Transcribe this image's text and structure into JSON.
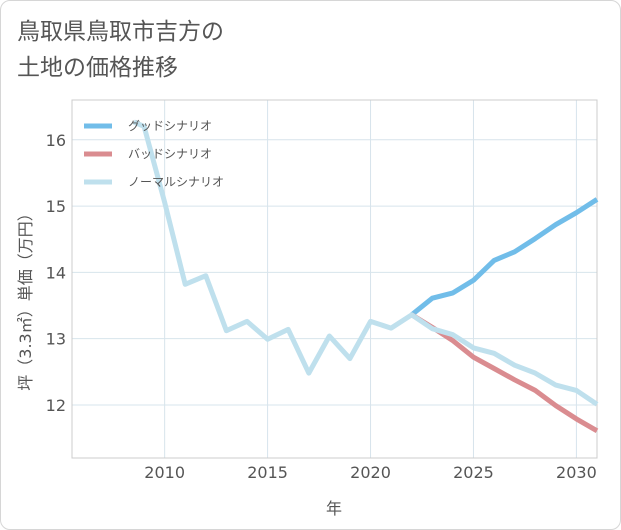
{
  "chart_data": {
    "type": "line",
    "title_lines": [
      "鳥取県鳥取市吉方の",
      "土地の価格推移"
    ],
    "xlabel": "年",
    "ylabel": "坪（3.3㎡）単価（万円）",
    "xlim": [
      2005.5,
      2031
    ],
    "ylim": [
      11.2,
      16.6
    ],
    "xticks": [
      2010,
      2015,
      2020,
      2025,
      2030
    ],
    "yticks": [
      12,
      13,
      14,
      15,
      16
    ],
    "legend_position": "top-left",
    "series": [
      {
        "name": "グッドシナリオ",
        "color": "#71bde9",
        "x": [
          2022,
          2023,
          2024,
          2025,
          2026,
          2027,
          2028,
          2029,
          2030,
          2031
        ],
        "values": [
          13.36,
          13.61,
          13.69,
          13.88,
          14.18,
          14.31,
          14.51,
          14.72,
          14.9,
          15.1
        ]
      },
      {
        "name": "バッドシナリオ",
        "color": "#da8c90",
        "x": [
          2022,
          2023,
          2024,
          2025,
          2026,
          2027,
          2028,
          2029,
          2030,
          2031
        ],
        "values": [
          13.36,
          13.17,
          12.97,
          12.72,
          12.55,
          12.38,
          12.22,
          11.99,
          11.79,
          11.61
        ]
      },
      {
        "name": "ノーマルシナリオ",
        "color": "#bfe0ed",
        "x": [
          2008.5,
          2009,
          2010,
          2011,
          2012,
          2013,
          2014,
          2015,
          2016,
          2017,
          2018,
          2019,
          2020,
          2021,
          2022,
          2023,
          2024,
          2025,
          2026,
          2027,
          2028,
          2029,
          2030,
          2031
        ],
        "values": [
          16.27,
          16.2,
          15.06,
          13.82,
          13.95,
          13.12,
          13.26,
          12.99,
          13.14,
          12.48,
          13.04,
          12.7,
          13.26,
          13.16,
          13.36,
          13.15,
          13.06,
          12.86,
          12.78,
          12.6,
          12.48,
          12.3,
          12.22,
          12.01
        ]
      }
    ]
  }
}
